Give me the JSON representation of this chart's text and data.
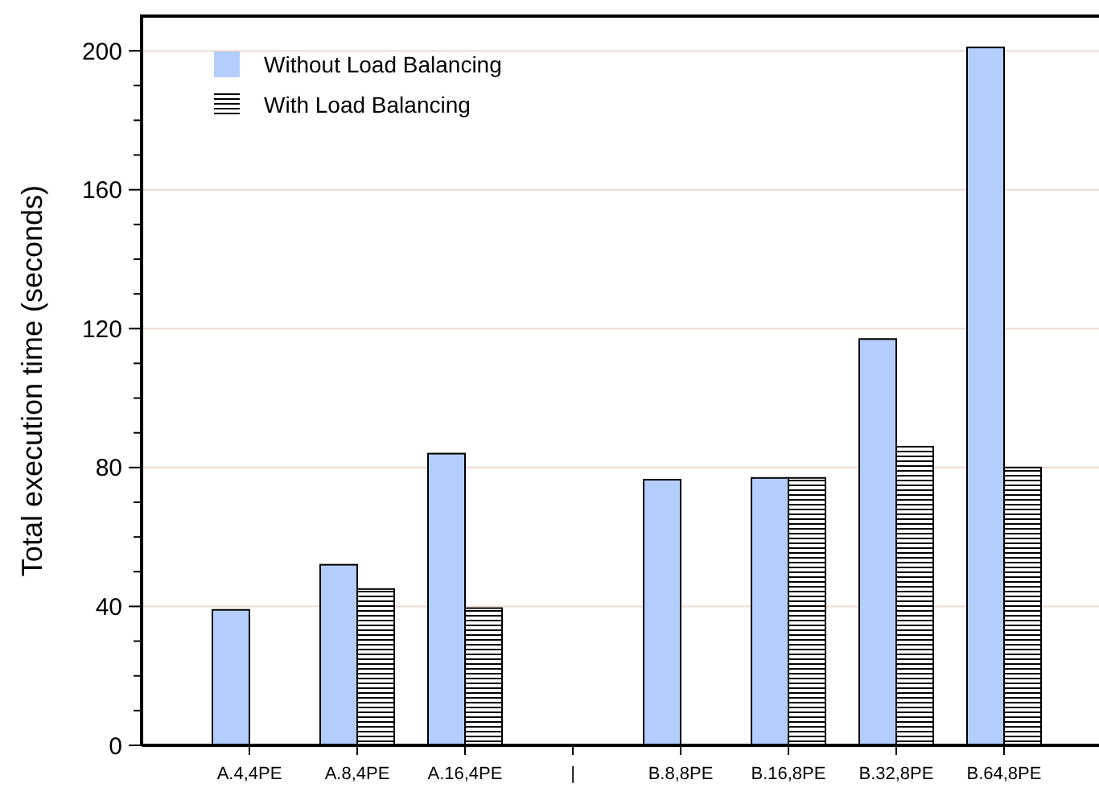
{
  "chart_data": {
    "type": "bar",
    "ylabel": "Total execution time (seconds)",
    "categories": [
      "A.4,4PE",
      "A.8,4PE",
      "A.16,4PE",
      "|",
      "B.8,8PE",
      "B.16,8PE",
      "B.32,8PE",
      "B.64,8PE"
    ],
    "series": [
      {
        "name": "Without Load Balancing",
        "color": "#b3cdfc",
        "values": [
          39,
          52,
          84,
          null,
          76.5,
          77,
          117,
          201
        ]
      },
      {
        "name": "With Load Balancing",
        "color": "#000000",
        "values": [
          null,
          45,
          39.5,
          null,
          null,
          77,
          86,
          80
        ]
      }
    ],
    "ylim": [
      0,
      210
    ],
    "yticks": [
      0,
      {
        "value": 10,
        "label": null
      },
      {
        "value": 20,
        "label": null
      },
      {
        "value": 30,
        "label": null
      },
      40,
      {
        "value": 50,
        "label": null
      },
      {
        "value": 60,
        "label": null
      },
      {
        "value": 70,
        "label": null
      },
      80,
      {
        "value": 90,
        "label": null
      },
      {
        "value": 100,
        "label": null
      },
      {
        "value": 110,
        "label": null
      },
      120,
      {
        "value": 130,
        "label": null
      },
      {
        "value": 140,
        "label": null
      },
      {
        "value": 150,
        "label": null
      },
      160,
      {
        "value": 170,
        "label": null
      },
      {
        "value": 180,
        "label": null
      },
      {
        "value": 190,
        "label": null
      },
      200
    ],
    "grid": "y",
    "legend": "top left"
  }
}
